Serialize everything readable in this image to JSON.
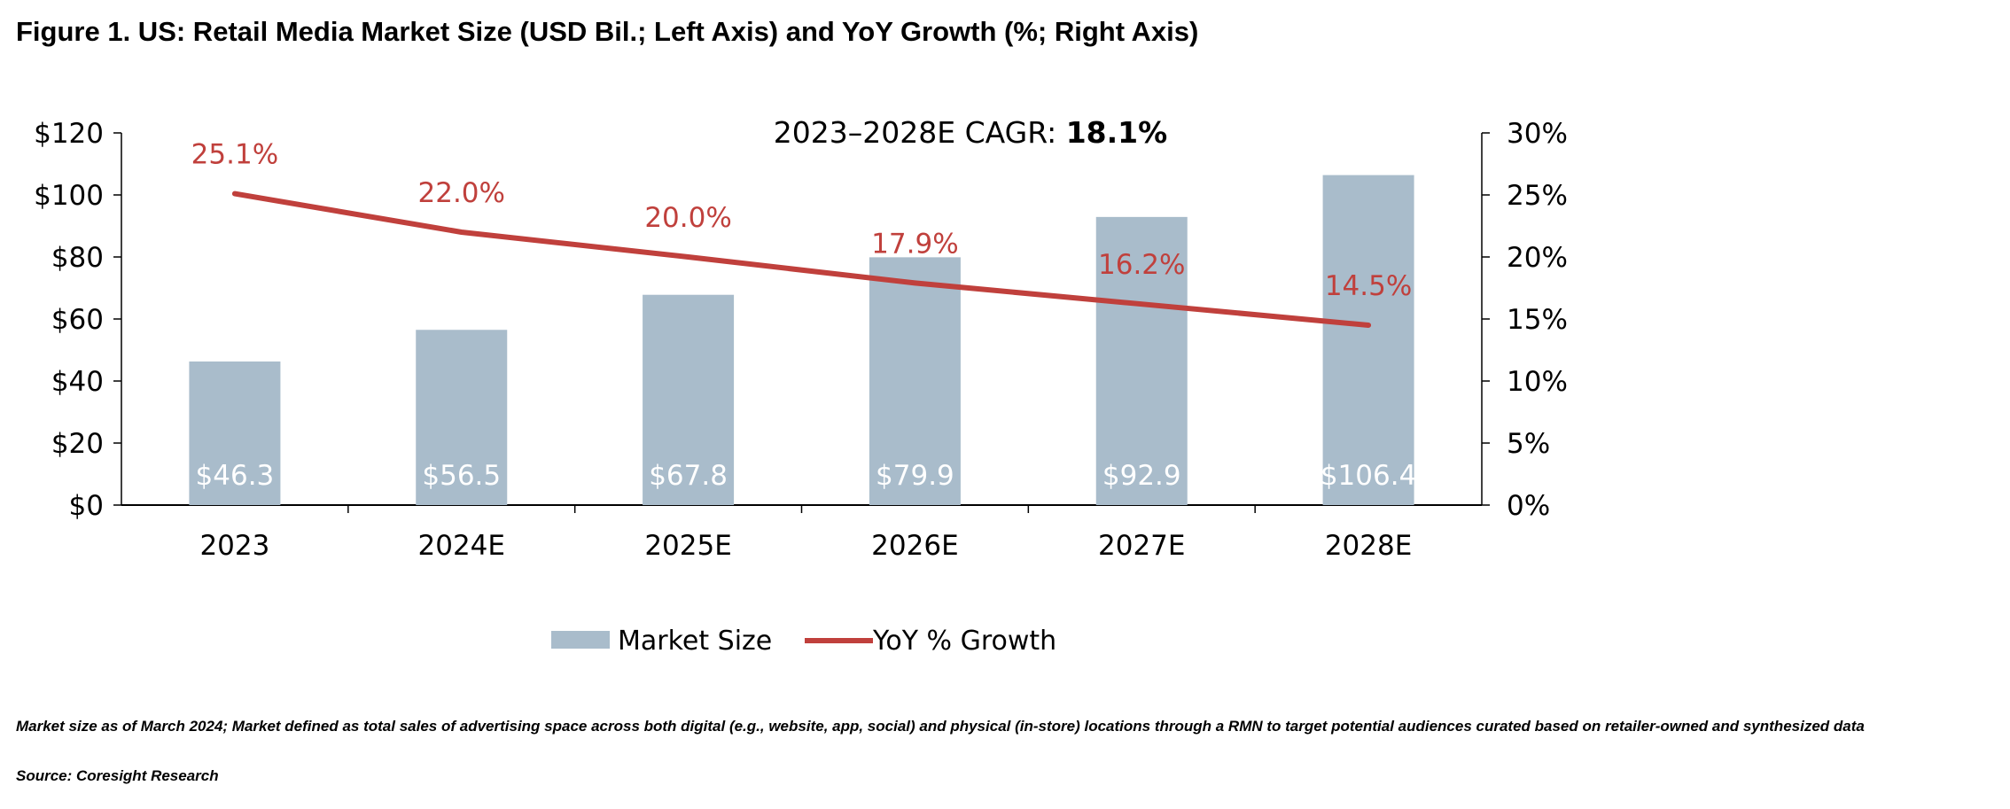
{
  "title": "Figure 1. US: Retail Media Market Size (USD Bil.; Left Axis) and YoY Growth (%; Right Axis)",
  "footnote": "Market size as of March 2024; Market defined as total sales of advertising space across both digital (e.g., website, app, social) and physical (in-store) locations through a RMN to target potential audiences curated based on retailer-owned and synthesized data",
  "source": "Source: Coresight Research",
  "colors": {
    "bar": "#a9bccb",
    "line": "#c0403c",
    "bar_label": "#ffffff",
    "axis": "#000000"
  },
  "chart_data": {
    "type": "bar",
    "categories": [
      "2023",
      "2024E",
      "2025E",
      "2026E",
      "2027E",
      "2028E"
    ],
    "annotation": {
      "prefix": "2023–2028E CAGR: ",
      "value": "18.1%"
    },
    "series": [
      {
        "name": "Market Size",
        "type": "bar",
        "axis": "left",
        "values": [
          46.3,
          56.5,
          67.8,
          79.9,
          92.9,
          106.4
        ],
        "labels": [
          "$46.3",
          "$56.5",
          "$67.8",
          "$79.9",
          "$92.9",
          "$106.4"
        ]
      },
      {
        "name": "YoY % Growth",
        "type": "line",
        "axis": "right",
        "values": [
          25.1,
          22.0,
          20.0,
          17.9,
          16.2,
          14.5
        ],
        "labels": [
          "25.1%",
          "22.0%",
          "20.0%",
          "17.9%",
          "16.2%",
          "14.5%"
        ]
      }
    ],
    "left_axis": {
      "ylim": [
        0,
        120
      ],
      "ticks": [
        0,
        20,
        40,
        60,
        80,
        100,
        120
      ],
      "tick_labels": [
        "$0",
        "$20",
        "$40",
        "$60",
        "$80",
        "$100",
        "$120"
      ]
    },
    "right_axis": {
      "ylim": [
        0,
        30
      ],
      "ticks": [
        0,
        5,
        10,
        15,
        20,
        25,
        30
      ],
      "tick_labels": [
        "0%",
        "5%",
        "10%",
        "15%",
        "20%",
        "25%",
        "30%"
      ]
    },
    "legend": {
      "position": "bottom-center",
      "entries": [
        "Market Size",
        "YoY % Growth"
      ]
    },
    "grid": false
  }
}
